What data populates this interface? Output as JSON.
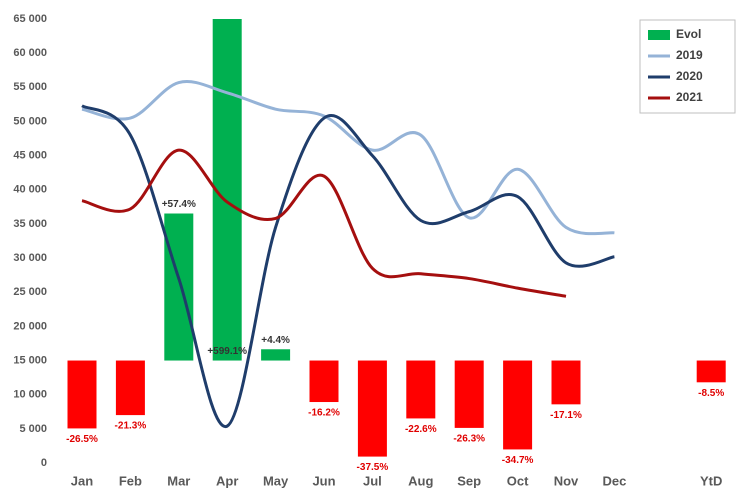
{
  "chart_data": {
    "type": "combo",
    "categories": [
      "Jan",
      "Feb",
      "Mar",
      "Apr",
      "May",
      "Jun",
      "Jul",
      "Aug",
      "Sep",
      "Oct",
      "Nov",
      "Dec",
      null,
      "YtD"
    ],
    "series": [
      {
        "name": "Evol",
        "type": "bar",
        "axis": "y2",
        "color": "#00b050",
        "negative_color": "#ff0000",
        "values": [
          -26.5,
          -21.3,
          57.4,
          599.1,
          4.4,
          -16.2,
          -37.5,
          -22.6,
          -26.3,
          -34.7,
          -17.1,
          null,
          null,
          -8.5
        ],
        "value_labels": [
          "-26.5%",
          "-21.3%",
          "+57.4%",
          "+599.1%",
          "+4.4%",
          "-16.2%",
          "-37.5%",
          "-22.6%",
          "-26.3%",
          "-34.7%",
          "-17.1%",
          null,
          null,
          "-8.5%"
        ]
      },
      {
        "name": "2019",
        "type": "line",
        "color": "#95b3d7",
        "values": [
          51800,
          50500,
          55700,
          54200,
          51800,
          50800,
          45800,
          48000,
          35900,
          43000,
          34500,
          33700,
          null,
          null
        ]
      },
      {
        "name": "2020",
        "type": "line",
        "color": "#1f3d6b",
        "values": [
          52300,
          48000,
          27000,
          5400,
          34500,
          50500,
          45000,
          35500,
          36800,
          39000,
          29300,
          30200,
          null,
          null
        ]
      },
      {
        "name": "2021",
        "type": "line",
        "color": "#a50f0f",
        "values": [
          38400,
          37200,
          45800,
          38200,
          35800,
          42000,
          28500,
          27700,
          27000,
          25600,
          24400,
          null,
          null,
          null
        ]
      }
    ],
    "ylim": [
      0,
      65000
    ],
    "yticks": [
      0,
      {
        "value": 5000,
        "label": "5 000"
      },
      {
        "value": 10000,
        "label": "10 000"
      },
      {
        "value": 15000,
        "label": "15 000"
      },
      {
        "value": 20000,
        "label": "20 000"
      },
      {
        "value": 25000,
        "label": "25 000"
      },
      {
        "value": 30000,
        "label": "30 000"
      },
      {
        "value": 35000,
        "label": "35 000"
      },
      {
        "value": 40000,
        "label": "40 000"
      },
      {
        "value": 45000,
        "label": "45 000"
      },
      {
        "value": 50000,
        "label": "50 000"
      },
      {
        "value": 55000,
        "label": "55 000"
      },
      {
        "value": 60000,
        "label": "60 000"
      },
      {
        "value": 65000,
        "label": "65 000"
      }
    ],
    "y2lim": [
      -40,
      133.33
    ],
    "grid": false,
    "legend": "upper right"
  }
}
